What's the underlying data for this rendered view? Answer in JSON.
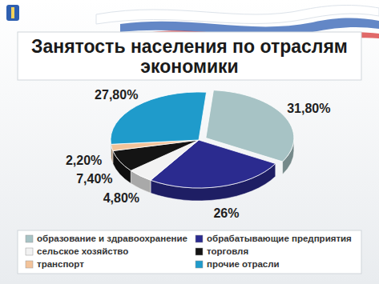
{
  "chart_data": {
    "type": "pie",
    "title": "Занятость населения по отраслям экономики",
    "categories": [
      "образование и здравоохранение",
      "обрабатывающие предприятия",
      "сельское хозяйство",
      "торговля",
      "транспорт",
      "прочие отрасли"
    ],
    "values": [
      31.8,
      26,
      4.8,
      7.4,
      2.2,
      27.8
    ],
    "value_labels": [
      "31,80%",
      "26%",
      "4,80%",
      "7,40%",
      "2,20%",
      "27,80%"
    ],
    "colors": [
      "#a7c3c5",
      "#2b2b8f",
      "#f2f2f2",
      "#141414",
      "#f3c39a",
      "#1f9bcb"
    ],
    "data_labels": true,
    "legend": "bottom"
  }
}
